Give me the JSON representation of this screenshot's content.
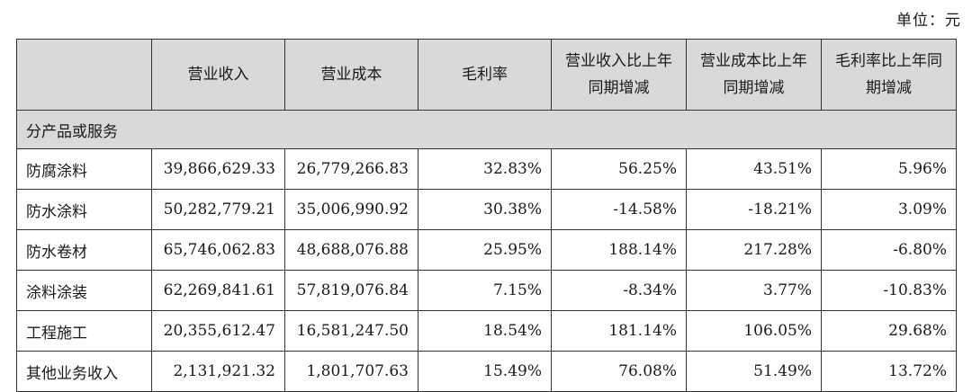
{
  "unit_label": "单位：元",
  "headers": [
    "",
    "营业收入",
    "营业成本",
    "毛利率",
    "营业收入比上年同期增减",
    "营业成本比上年同期增减",
    "毛利率比上年同期增减"
  ],
  "section_label": "分产品或服务",
  "rows": [
    {
      "name": "防腐涂料",
      "revenue": "39,866,629.33",
      "cost": "26,779,266.83",
      "margin": "32.83%",
      "rev_change": "56.25%",
      "cost_change": "43.51%",
      "margin_change": "5.96%"
    },
    {
      "name": "防水涂料",
      "revenue": "50,282,779.21",
      "cost": "35,006,990.92",
      "margin": "30.38%",
      "rev_change": "-14.58%",
      "cost_change": "-18.21%",
      "margin_change": "3.09%"
    },
    {
      "name": "防水卷材",
      "revenue": "65,746,062.83",
      "cost": "48,688,076.88",
      "margin": "25.95%",
      "rev_change": "188.14%",
      "cost_change": "217.28%",
      "margin_change": "-6.80%"
    },
    {
      "name": "涂料涂装",
      "revenue": "62,269,841.61",
      "cost": "57,819,076.84",
      "margin": "7.15%",
      "rev_change": "-8.34%",
      "cost_change": "3.77%",
      "margin_change": "-10.83%"
    },
    {
      "name": "工程施工",
      "revenue": "20,355,612.47",
      "cost": "16,581,247.50",
      "margin": "18.54%",
      "rev_change": "181.14%",
      "cost_change": "106.05%",
      "margin_change": "29.68%"
    },
    {
      "name": "其他业务收入",
      "revenue": "2,131,921.32",
      "cost": "1,801,707.63",
      "margin": "15.49%",
      "rev_change": "76.08%",
      "cost_change": "51.49%",
      "margin_change": "13.72%"
    }
  ]
}
